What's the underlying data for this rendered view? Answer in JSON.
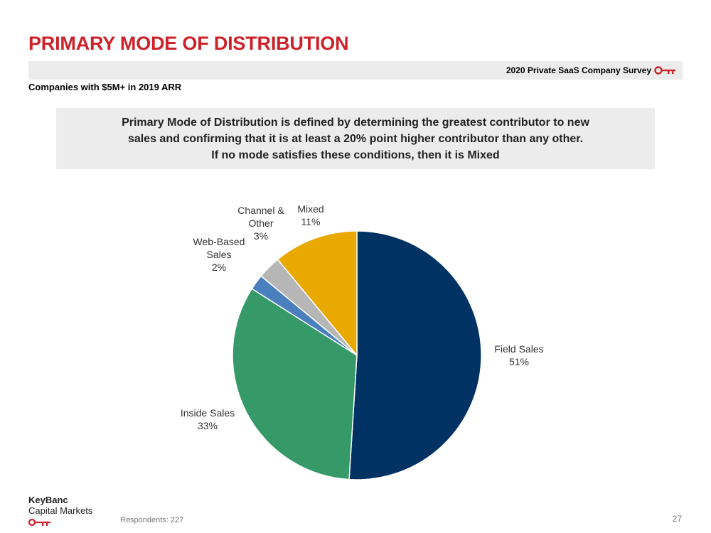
{
  "header": {
    "title": "PRIMARY MODE OF DISTRIBUTION",
    "survey_label": "2020 Private SaaS Company Survey",
    "subtitle": "Companies with $5M+ in 2019 ARR"
  },
  "definition": {
    "lines": [
      "Primary Mode of Distribution is defined by determining the greatest contributor to new",
      "sales and confirming that it is at least a 20% point higher contributor than any other.",
      "If no mode satisfies these conditions, then it is Mixed"
    ]
  },
  "chart_data": {
    "type": "pie",
    "start": "12 o'clock, clockwise",
    "slices": [
      {
        "label": [
          "Field Sales"
        ],
        "value": 51,
        "display": "51%",
        "color": "#003263"
      },
      {
        "label": [
          "Inside Sales"
        ],
        "value": 33,
        "display": "33%",
        "color": "#359968"
      },
      {
        "label": [
          "Web-Based",
          "Sales"
        ],
        "value": 2,
        "display": "2%",
        "color": "#4a7fbd"
      },
      {
        "label": [
          "Channel &",
          "Other"
        ],
        "value": 3,
        "display": "3%",
        "color": "#b6b6b6"
      },
      {
        "label": [
          "Mixed"
        ],
        "value": 11,
        "display": "11%",
        "color": "#e9a900"
      }
    ]
  },
  "footer": {
    "brand_name": "KeyBanc",
    "brand_sub": "Capital Markets",
    "respondents": "Respondents: 227",
    "page_number": "27"
  },
  "colors": {
    "title_red": "#cc2229",
    "band_gray": "#ececec",
    "key_icon": "#cc2229"
  },
  "icons": {
    "survey_key": "key-icon",
    "brand_key": "key-icon"
  }
}
